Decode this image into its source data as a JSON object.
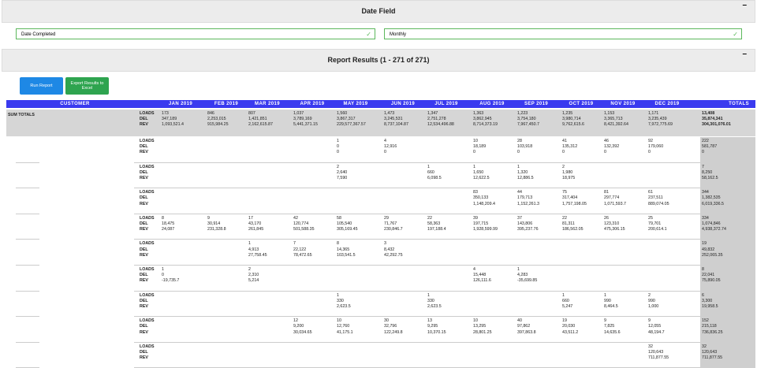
{
  "date_field": {
    "title": "Date Field",
    "collapse": "–",
    "selects": [
      "Date Completed",
      "Monthly"
    ]
  },
  "report": {
    "title": "Report Results (1 - 271 of 271)",
    "collapse": "–",
    "buttons": [
      "Run Report",
      "Export Results to Excel"
    ]
  },
  "table": {
    "columns": [
      "CUSTOMER",
      "JAN 2019",
      "FEB 2019",
      "MAR 2019",
      "APR 2019",
      "MAY 2019",
      "JUN 2019",
      "JUL 2019",
      "AUG 2019",
      "SEP 2019",
      "OCT 2019",
      "NOV 2019",
      "DEC 2019",
      "TOTALS"
    ],
    "labels": [
      "LOADS",
      "DEL",
      "REV"
    ],
    "sum_totals": {
      "name": "SUM TOTALS",
      "cells": [
        [
          "173",
          "347,189",
          "1,093,521.4"
        ],
        [
          "846",
          "2,253,015",
          "915,984.25"
        ],
        [
          "807",
          "1,421,851",
          "2,162,615.87"
        ],
        [
          "1,037",
          "3,789,169",
          "5,441,371.15"
        ],
        [
          "1,560",
          "3,867,317",
          "229,577,367.57"
        ],
        [
          "1,473",
          "3,245,531",
          "8,737,104.87"
        ],
        [
          "1,347",
          "2,751,278",
          "12,534,496.88"
        ],
        [
          "1,363",
          "3,862,945",
          "8,714,373.19"
        ],
        [
          "1,223",
          "3,754,180",
          "7,967,450.7"
        ],
        [
          "1,235",
          "3,980,714",
          "9,762,615.6"
        ],
        [
          "1,153",
          "3,365,713",
          "8,421,392.64"
        ],
        [
          "1,171",
          "3,235,439",
          "7,972,775.69"
        ],
        [
          "13,408",
          "35,874,341",
          "304,301,076.01"
        ]
      ]
    },
    "rows": [
      {
        "cells": [
          null,
          null,
          null,
          null,
          [
            "1",
            "0",
            "0"
          ],
          [
            "4",
            "12,916",
            "0"
          ],
          null,
          [
            "10",
            "18,189",
            "0"
          ],
          [
            "28",
            "103,918",
            "0"
          ],
          [
            "41",
            "135,312",
            "0"
          ],
          [
            "46",
            "132,392",
            "0"
          ],
          [
            "92",
            "179,060",
            "0"
          ],
          [
            "222",
            "581,787",
            "0"
          ]
        ]
      },
      {
        "cells": [
          null,
          null,
          null,
          null,
          [
            "2",
            "2,640",
            "7,590"
          ],
          null,
          [
            "1",
            "660",
            "6,098.5"
          ],
          [
            "1",
            "1,650",
            "12,622.5"
          ],
          [
            "1",
            "1,320",
            "12,886.5"
          ],
          [
            "2",
            "1,980",
            "18,975"
          ],
          null,
          null,
          [
            "7",
            "8,250",
            "58,162.5"
          ]
        ]
      },
      {
        "cells": [
          null,
          null,
          null,
          null,
          null,
          null,
          null,
          [
            "83",
            "350,133",
            "1,148,209.4"
          ],
          [
            "44",
            "179,713",
            "1,152,261.3"
          ],
          [
            "75",
            "317,404",
            "1,757,198.05"
          ],
          [
            "81",
            "297,774",
            "1,071,593.7"
          ],
          [
            "61",
            "237,511",
            "889,074.05"
          ],
          [
            "344",
            "1,382,535",
            "6,019,336.5"
          ]
        ]
      },
      {
        "cells": [
          [
            "8",
            "18,475",
            "24,087"
          ],
          [
            "9",
            "30,914",
            "231,328.8"
          ],
          [
            "17",
            "43,170",
            "261,845"
          ],
          [
            "42",
            "120,774",
            "501,588.35"
          ],
          [
            "58",
            "105,540",
            "305,169.45"
          ],
          [
            "29",
            "71,767",
            "230,846.7"
          ],
          [
            "22",
            "58,363",
            "197,188.4"
          ],
          [
            "39",
            "197,715",
            "1,928,599.99"
          ],
          [
            "37",
            "143,806",
            "395,237.76"
          ],
          [
            "22",
            "81,311",
            "186,562.05"
          ],
          [
            "26",
            "123,310",
            "475,306.15"
          ],
          [
            "25",
            "79,701",
            "200,614.1"
          ],
          [
            "334",
            "1,074,846",
            "4,938,372.74"
          ]
        ]
      },
      {
        "cells": [
          null,
          null,
          [
            "1",
            "4,913",
            "27,758.45"
          ],
          [
            "7",
            "22,122",
            "78,472.65"
          ],
          [
            "8",
            "14,365",
            "103,541.5"
          ],
          [
            "3",
            "8,432",
            "42,292.75"
          ],
          null,
          null,
          null,
          null,
          null,
          null,
          [
            "19",
            "49,832",
            "252,065.35"
          ]
        ]
      },
      {
        "cells": [
          [
            "1",
            "0",
            "-19,735.7"
          ],
          null,
          [
            "2",
            "2,310",
            "5,214"
          ],
          null,
          null,
          null,
          null,
          [
            "4",
            "15,448",
            "126,111.6"
          ],
          [
            "1",
            "4,283",
            "-35,699.85"
          ],
          null,
          null,
          null,
          [
            "8",
            "22,041",
            "75,890.05"
          ]
        ]
      },
      {
        "cells": [
          null,
          null,
          null,
          null,
          [
            "1",
            "330",
            "2,623.5"
          ],
          null,
          [
            "1",
            "330",
            "2,623.5"
          ],
          null,
          null,
          [
            "1",
            "660",
            "5,247"
          ],
          [
            "1",
            "990",
            "8,464.5"
          ],
          [
            "2",
            "990",
            "1,000"
          ],
          [
            "6",
            "3,300",
            "19,958.5"
          ]
        ]
      },
      {
        "cells": [
          null,
          null,
          null,
          [
            "12",
            "9,200",
            "30,034.65"
          ],
          [
            "10",
            "12,760",
            "41,175.1"
          ],
          [
            "30",
            "32,796",
            "122,249.8"
          ],
          [
            "13",
            "9,295",
            "10,370.15"
          ],
          [
            "10",
            "13,295",
            "28,801.25"
          ],
          [
            "40",
            "97,862",
            "397,863.8"
          ],
          [
            "19",
            "20,030",
            "43,511.2"
          ],
          [
            "9",
            "7,825",
            "14,635.6"
          ],
          [
            "9",
            "12,055",
            "48,194.7"
          ],
          [
            "152",
            "215,118",
            "736,836.25"
          ]
        ]
      },
      {
        "cells": [
          null,
          null,
          null,
          null,
          null,
          null,
          null,
          null,
          null,
          null,
          null,
          [
            "32",
            "120,643",
            "711,877.55"
          ],
          [
            "32",
            "120,643",
            "711,877.55"
          ]
        ]
      }
    ]
  }
}
